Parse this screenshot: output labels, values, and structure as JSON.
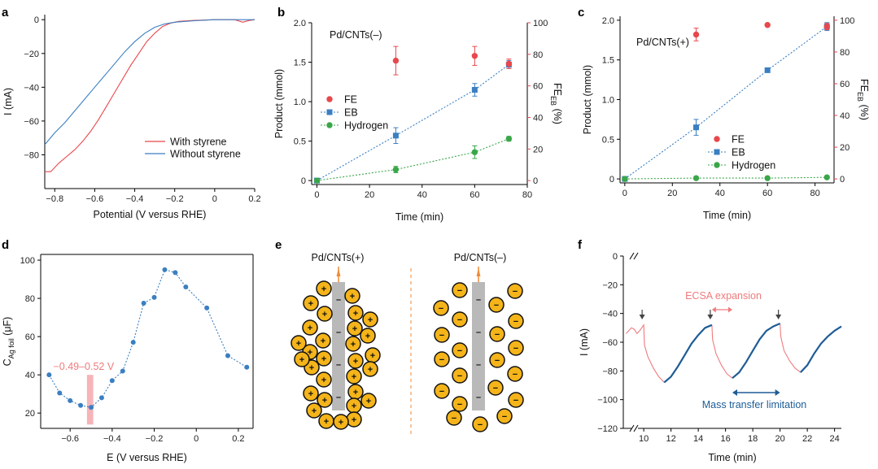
{
  "colors": {
    "red": "#e8474c",
    "blue": "#3a7fc1",
    "navy": "#1e5c96",
    "green": "#3aa64a",
    "pink": "#f4a7ad",
    "salmon": "#ef7b7e",
    "gold": "#f4b41a",
    "rod": "#b9b9b9",
    "orange": "#f08a35"
  },
  "chart_data": [
    {
      "panel": "a",
      "type": "line",
      "xlabel": "Potential (V versus RHE)",
      "ylabel": "I (mA)",
      "xlim": [
        -0.85,
        0.2
      ],
      "ylim": [
        -100,
        3
      ],
      "xticks": [
        -0.8,
        -0.6,
        -0.4,
        -0.2,
        0,
        0.2
      ],
      "yticks": [
        0,
        -20,
        -40,
        -60,
        -80
      ],
      "legend": [
        "With styrene",
        "Without styrene"
      ],
      "series": [
        {
          "name": "With styrene",
          "color": "red",
          "points": [
            [
              -0.85,
              -90
            ],
            [
              -0.82,
              -90
            ],
            [
              -0.78,
              -85
            ],
            [
              -0.74,
              -81
            ],
            [
              -0.7,
              -77
            ],
            [
              -0.66,
              -72
            ],
            [
              -0.62,
              -66
            ],
            [
              -0.58,
              -59
            ],
            [
              -0.54,
              -51
            ],
            [
              -0.5,
              -43
            ],
            [
              -0.46,
              -35
            ],
            [
              -0.42,
              -27
            ],
            [
              -0.38,
              -20
            ],
            [
              -0.34,
              -13
            ],
            [
              -0.3,
              -8
            ],
            [
              -0.26,
              -4
            ],
            [
              -0.22,
              -2
            ],
            [
              -0.18,
              -1
            ],
            [
              -0.1,
              -0.4
            ],
            [
              0,
              0
            ],
            [
              0.1,
              0
            ],
            [
              0.14,
              -1.5
            ],
            [
              0.17,
              -0.5
            ],
            [
              0.2,
              0
            ]
          ]
        },
        {
          "name": "Without styrene",
          "color": "blue",
          "points": [
            [
              -0.85,
              -74
            ],
            [
              -0.8,
              -67
            ],
            [
              -0.75,
              -61
            ],
            [
              -0.7,
              -54
            ],
            [
              -0.65,
              -47
            ],
            [
              -0.6,
              -40
            ],
            [
              -0.55,
              -33
            ],
            [
              -0.5,
              -26
            ],
            [
              -0.45,
              -19
            ],
            [
              -0.4,
              -13
            ],
            [
              -0.35,
              -8
            ],
            [
              -0.3,
              -4.5
            ],
            [
              -0.25,
              -2.5
            ],
            [
              -0.2,
              -1.5
            ],
            [
              -0.1,
              -0.6
            ],
            [
              0,
              0
            ],
            [
              0.1,
              0
            ],
            [
              0.2,
              0
            ]
          ]
        }
      ]
    },
    {
      "panel": "b",
      "type": "scatter",
      "annotation": "Pd/CNTs(–)",
      "xlabel": "Time (min)",
      "ylabel": "Product (mmol)",
      "y2label": "FE",
      "y2label_sub": "EB",
      "y2label_unit": "(%)",
      "xlim": [
        -2,
        80
      ],
      "ylim": [
        -0.05,
        2.0
      ],
      "y2lim": [
        -2.5,
        100
      ],
      "xticks": [
        0,
        20,
        40,
        60,
        80
      ],
      "yticks": [
        0,
        0.5,
        1.0,
        1.5,
        2.0
      ],
      "y2ticks": [
        0,
        20,
        40,
        60,
        80,
        100
      ],
      "legend": [
        "FE",
        "EB",
        "Hydrogen"
      ],
      "series": [
        {
          "name": "EB",
          "axis": "left",
          "color": "blue",
          "marker": "square",
          "line": "dotted",
          "x": [
            0,
            30,
            60,
            73
          ],
          "y": [
            0,
            0.57,
            1.15,
            1.47
          ],
          "err": [
            0,
            0.1,
            0.08,
            0.05
          ]
        },
        {
          "name": "Hydrogen",
          "axis": "left",
          "color": "green",
          "marker": "circle",
          "line": "dotted",
          "x": [
            0,
            30,
            60,
            73
          ],
          "y": [
            0,
            0.14,
            0.36,
            0.53
          ],
          "err": [
            0,
            0.04,
            0.08,
            0.03
          ]
        },
        {
          "name": "FE",
          "axis": "right",
          "color": "red",
          "marker": "circle",
          "line": "none",
          "x": [
            30,
            60,
            73
          ],
          "y": [
            76,
            79,
            74
          ],
          "err": [
            9,
            6,
            3
          ]
        }
      ]
    },
    {
      "panel": "c",
      "type": "scatter",
      "annotation": "Pd/CNTs(+)",
      "xlabel": "Time (min)",
      "ylabel": "Product (mmol)",
      "y2label": "FE",
      "y2label_sub": "EB",
      "y2label_unit": "(%)",
      "xlim": [
        -2,
        88
      ],
      "ylim": [
        -0.05,
        2.05
      ],
      "y2lim": [
        -2.5,
        102.5
      ],
      "xticks": [
        0,
        20,
        40,
        60,
        80
      ],
      "yticks": [
        0,
        0.5,
        1.0,
        1.5,
        2.0
      ],
      "y2ticks": [
        0,
        20,
        40,
        60,
        80,
        100
      ],
      "legend": [
        "FE",
        "EB",
        "Hydrogen"
      ],
      "series": [
        {
          "name": "EB",
          "axis": "left",
          "color": "blue",
          "marker": "square",
          "line": "dotted",
          "x": [
            0,
            30,
            60,
            85
          ],
          "y": [
            0,
            0.65,
            1.37,
            1.92
          ],
          "err": [
            0,
            0.1,
            0,
            0.05
          ]
        },
        {
          "name": "Hydrogen",
          "axis": "left",
          "color": "green",
          "marker": "circle",
          "line": "dotted",
          "x": [
            0,
            30,
            60,
            85
          ],
          "y": [
            0,
            0.01,
            0.01,
            0.02
          ],
          "err": [
            0,
            0,
            0,
            0
          ]
        },
        {
          "name": "FE",
          "axis": "right",
          "color": "red",
          "marker": "circle",
          "line": "none",
          "x": [
            30,
            60,
            85
          ],
          "y": [
            91,
            97,
            96
          ],
          "err": [
            4,
            0,
            2
          ]
        }
      ]
    },
    {
      "panel": "d",
      "type": "scatter",
      "xlabel": "E (V versus RHE)",
      "ylabel": "C",
      "ylabel_sub": "Ag foil",
      "ylabel_unit": "(μF)",
      "xlim": [
        -0.74,
        0.27
      ],
      "ylim": [
        12,
        103
      ],
      "xticks": [
        -0.6,
        -0.4,
        -0.2,
        0,
        0.2
      ],
      "yticks": [
        20,
        40,
        60,
        80,
        100
      ],
      "highlight": {
        "label": "−0.49–0.52 V",
        "x": [
          -0.52,
          -0.49
        ],
        "y": [
          14,
          40
        ]
      },
      "series": [
        {
          "name": "capacitance",
          "color": "blue",
          "marker": "circle",
          "line": "dotted",
          "x": [
            -0.7,
            -0.65,
            -0.6,
            -0.55,
            -0.5,
            -0.45,
            -0.4,
            -0.35,
            -0.3,
            -0.25,
            -0.2,
            -0.15,
            -0.1,
            -0.05,
            0.05,
            0.15,
            0.24
          ],
          "y": [
            40,
            30.5,
            26.5,
            24,
            23,
            28,
            37,
            42,
            57,
            77.5,
            80.5,
            95,
            93.5,
            86,
            75,
            50,
            44
          ]
        }
      ]
    },
    {
      "panel": "e",
      "type": "diagram",
      "left_label": "Pd/CNTs(+)",
      "right_label": "Pd/CNTs(–)",
      "ion_plus": "+",
      "ion_minus": "−",
      "rod_charge": "–"
    },
    {
      "panel": "f",
      "type": "line",
      "xlabel": "Time (min)",
      "ylabel": "I (mA)",
      "xlim": [
        8.5,
        24.5
      ],
      "ylim": [
        -120,
        0
      ],
      "xticks": [
        10,
        12,
        14,
        16,
        18,
        20,
        22,
        24
      ],
      "yticks": [
        0,
        -20,
        -40,
        -60,
        -80,
        -100,
        -120
      ],
      "annotation_ecsa": "ECSA expansion",
      "annotation_mass": "Mass transfer limitation",
      "ecsa_range": [
        15.0,
        16.5
      ],
      "mass_range": [
        16.5,
        20.0
      ],
      "arrow_times": [
        10.0,
        15.0,
        20.0
      ],
      "arrow_y": -47,
      "series": [
        {
          "name": "ECSA expansion",
          "color": "salmon",
          "segments": [
            [
              [
                8.7,
                -54
              ],
              [
                8.9,
                -52
              ],
              [
                9.1,
                -50
              ],
              [
                9.3,
                -51
              ],
              [
                9.5,
                -54
              ],
              [
                9.7,
                -52
              ],
              [
                9.85,
                -50
              ],
              [
                10.0,
                -48
              ],
              [
                10.05,
                -62
              ],
              [
                10.3,
                -70
              ],
              [
                10.7,
                -78
              ],
              [
                11.1,
                -84
              ],
              [
                11.5,
                -88
              ]
            ],
            [
              [
                15.0,
                -48
              ],
              [
                15.05,
                -58
              ],
              [
                15.3,
                -68
              ],
              [
                15.7,
                -76
              ],
              [
                16.1,
                -82
              ],
              [
                16.5,
                -85
              ]
            ],
            [
              [
                20.0,
                -47
              ],
              [
                20.05,
                -56
              ],
              [
                20.3,
                -66
              ],
              [
                20.7,
                -73
              ],
              [
                21.1,
                -78
              ],
              [
                21.5,
                -81
              ]
            ]
          ]
        },
        {
          "name": "Mass transfer limitation",
          "color": "navy",
          "segments": [
            [
              [
                11.5,
                -88
              ],
              [
                12.0,
                -84
              ],
              [
                12.5,
                -77
              ],
              [
                13.0,
                -69
              ],
              [
                13.5,
                -61
              ],
              [
                14.0,
                -55
              ],
              [
                14.5,
                -50
              ],
              [
                15.0,
                -48
              ]
            ],
            [
              [
                16.5,
                -85
              ],
              [
                17.0,
                -81
              ],
              [
                17.5,
                -74
              ],
              [
                18.0,
                -66
              ],
              [
                18.5,
                -58
              ],
              [
                19.0,
                -52
              ],
              [
                19.5,
                -49
              ],
              [
                20.0,
                -47
              ]
            ],
            [
              [
                21.5,
                -81
              ],
              [
                22.0,
                -76
              ],
              [
                22.5,
                -68
              ],
              [
                23.0,
                -61
              ],
              [
                23.5,
                -56
              ],
              [
                24.0,
                -52
              ],
              [
                24.5,
                -49
              ]
            ]
          ]
        }
      ]
    }
  ]
}
